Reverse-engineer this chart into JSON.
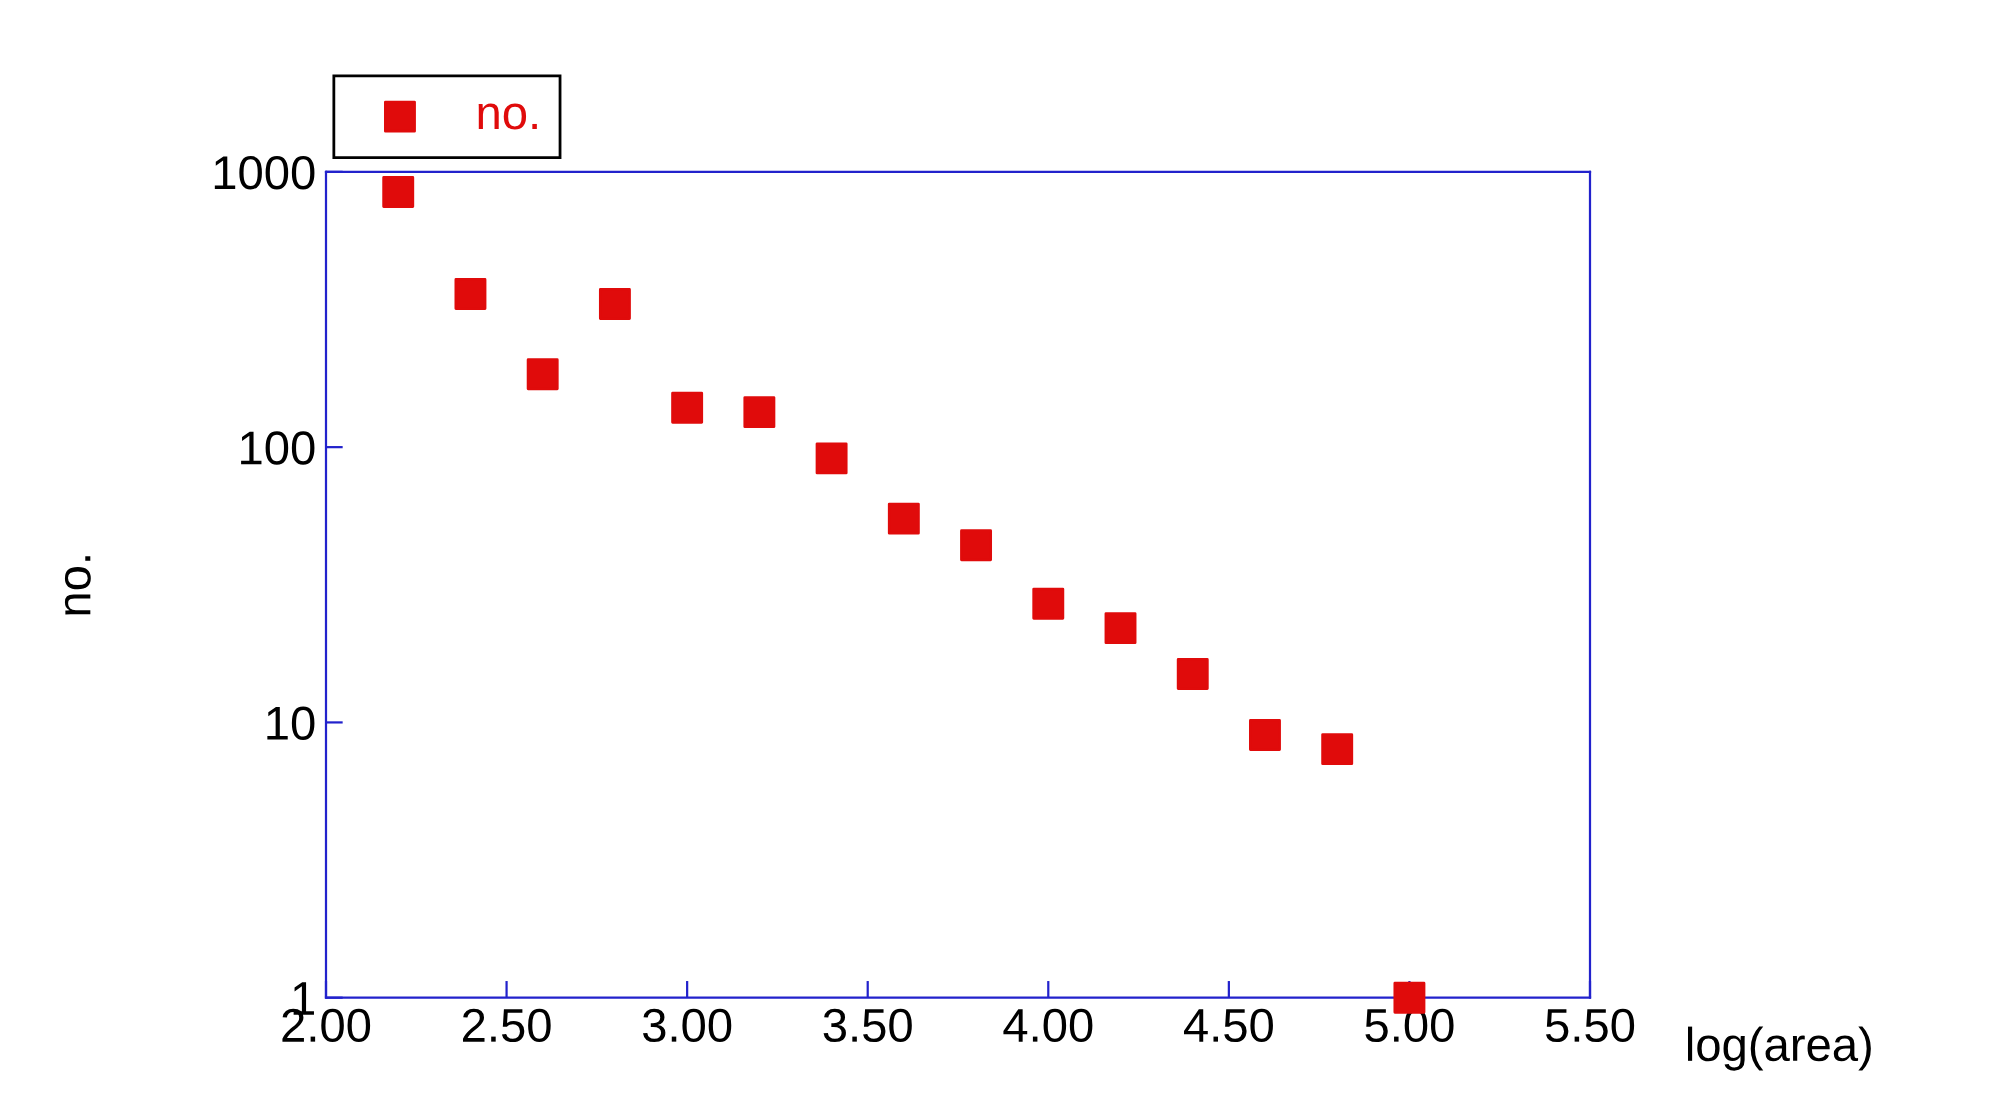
{
  "chart_data": {
    "type": "scatter",
    "xlabel": "log(area)",
    "ylabel": "no.",
    "x": [
      2.2,
      2.4,
      2.6,
      2.8,
      3.0,
      3.2,
      3.4,
      3.6,
      3.8,
      4.0,
      4.2,
      4.4,
      4.6,
      4.8,
      5.0
    ],
    "series": [
      {
        "name": "no.",
        "color": "#e00b0b",
        "values": [
          845,
          360,
          184,
          331,
          139,
          134,
          91,
          55,
          44,
          27,
          22,
          15,
          9,
          8,
          1
        ]
      }
    ],
    "xlim": [
      2.0,
      5.5
    ],
    "xticks": [
      {
        "value": 2.0,
        "label": "2.00"
      },
      {
        "value": 2.5,
        "label": "2.50"
      },
      {
        "value": 3.0,
        "label": "3.00"
      },
      {
        "value": 3.5,
        "label": "3.50"
      },
      {
        "value": 4.0,
        "label": "4.00"
      },
      {
        "value": 4.5,
        "label": "4.50"
      },
      {
        "value": 5.0,
        "label": "5.00"
      },
      {
        "value": 5.5,
        "label": "5.50"
      }
    ],
    "ylim": [
      1,
      1000
    ],
    "yticks": [
      1,
      10,
      100,
      1000
    ],
    "log": true,
    "marker": "square",
    "legend": "top left",
    "grid": false
  }
}
